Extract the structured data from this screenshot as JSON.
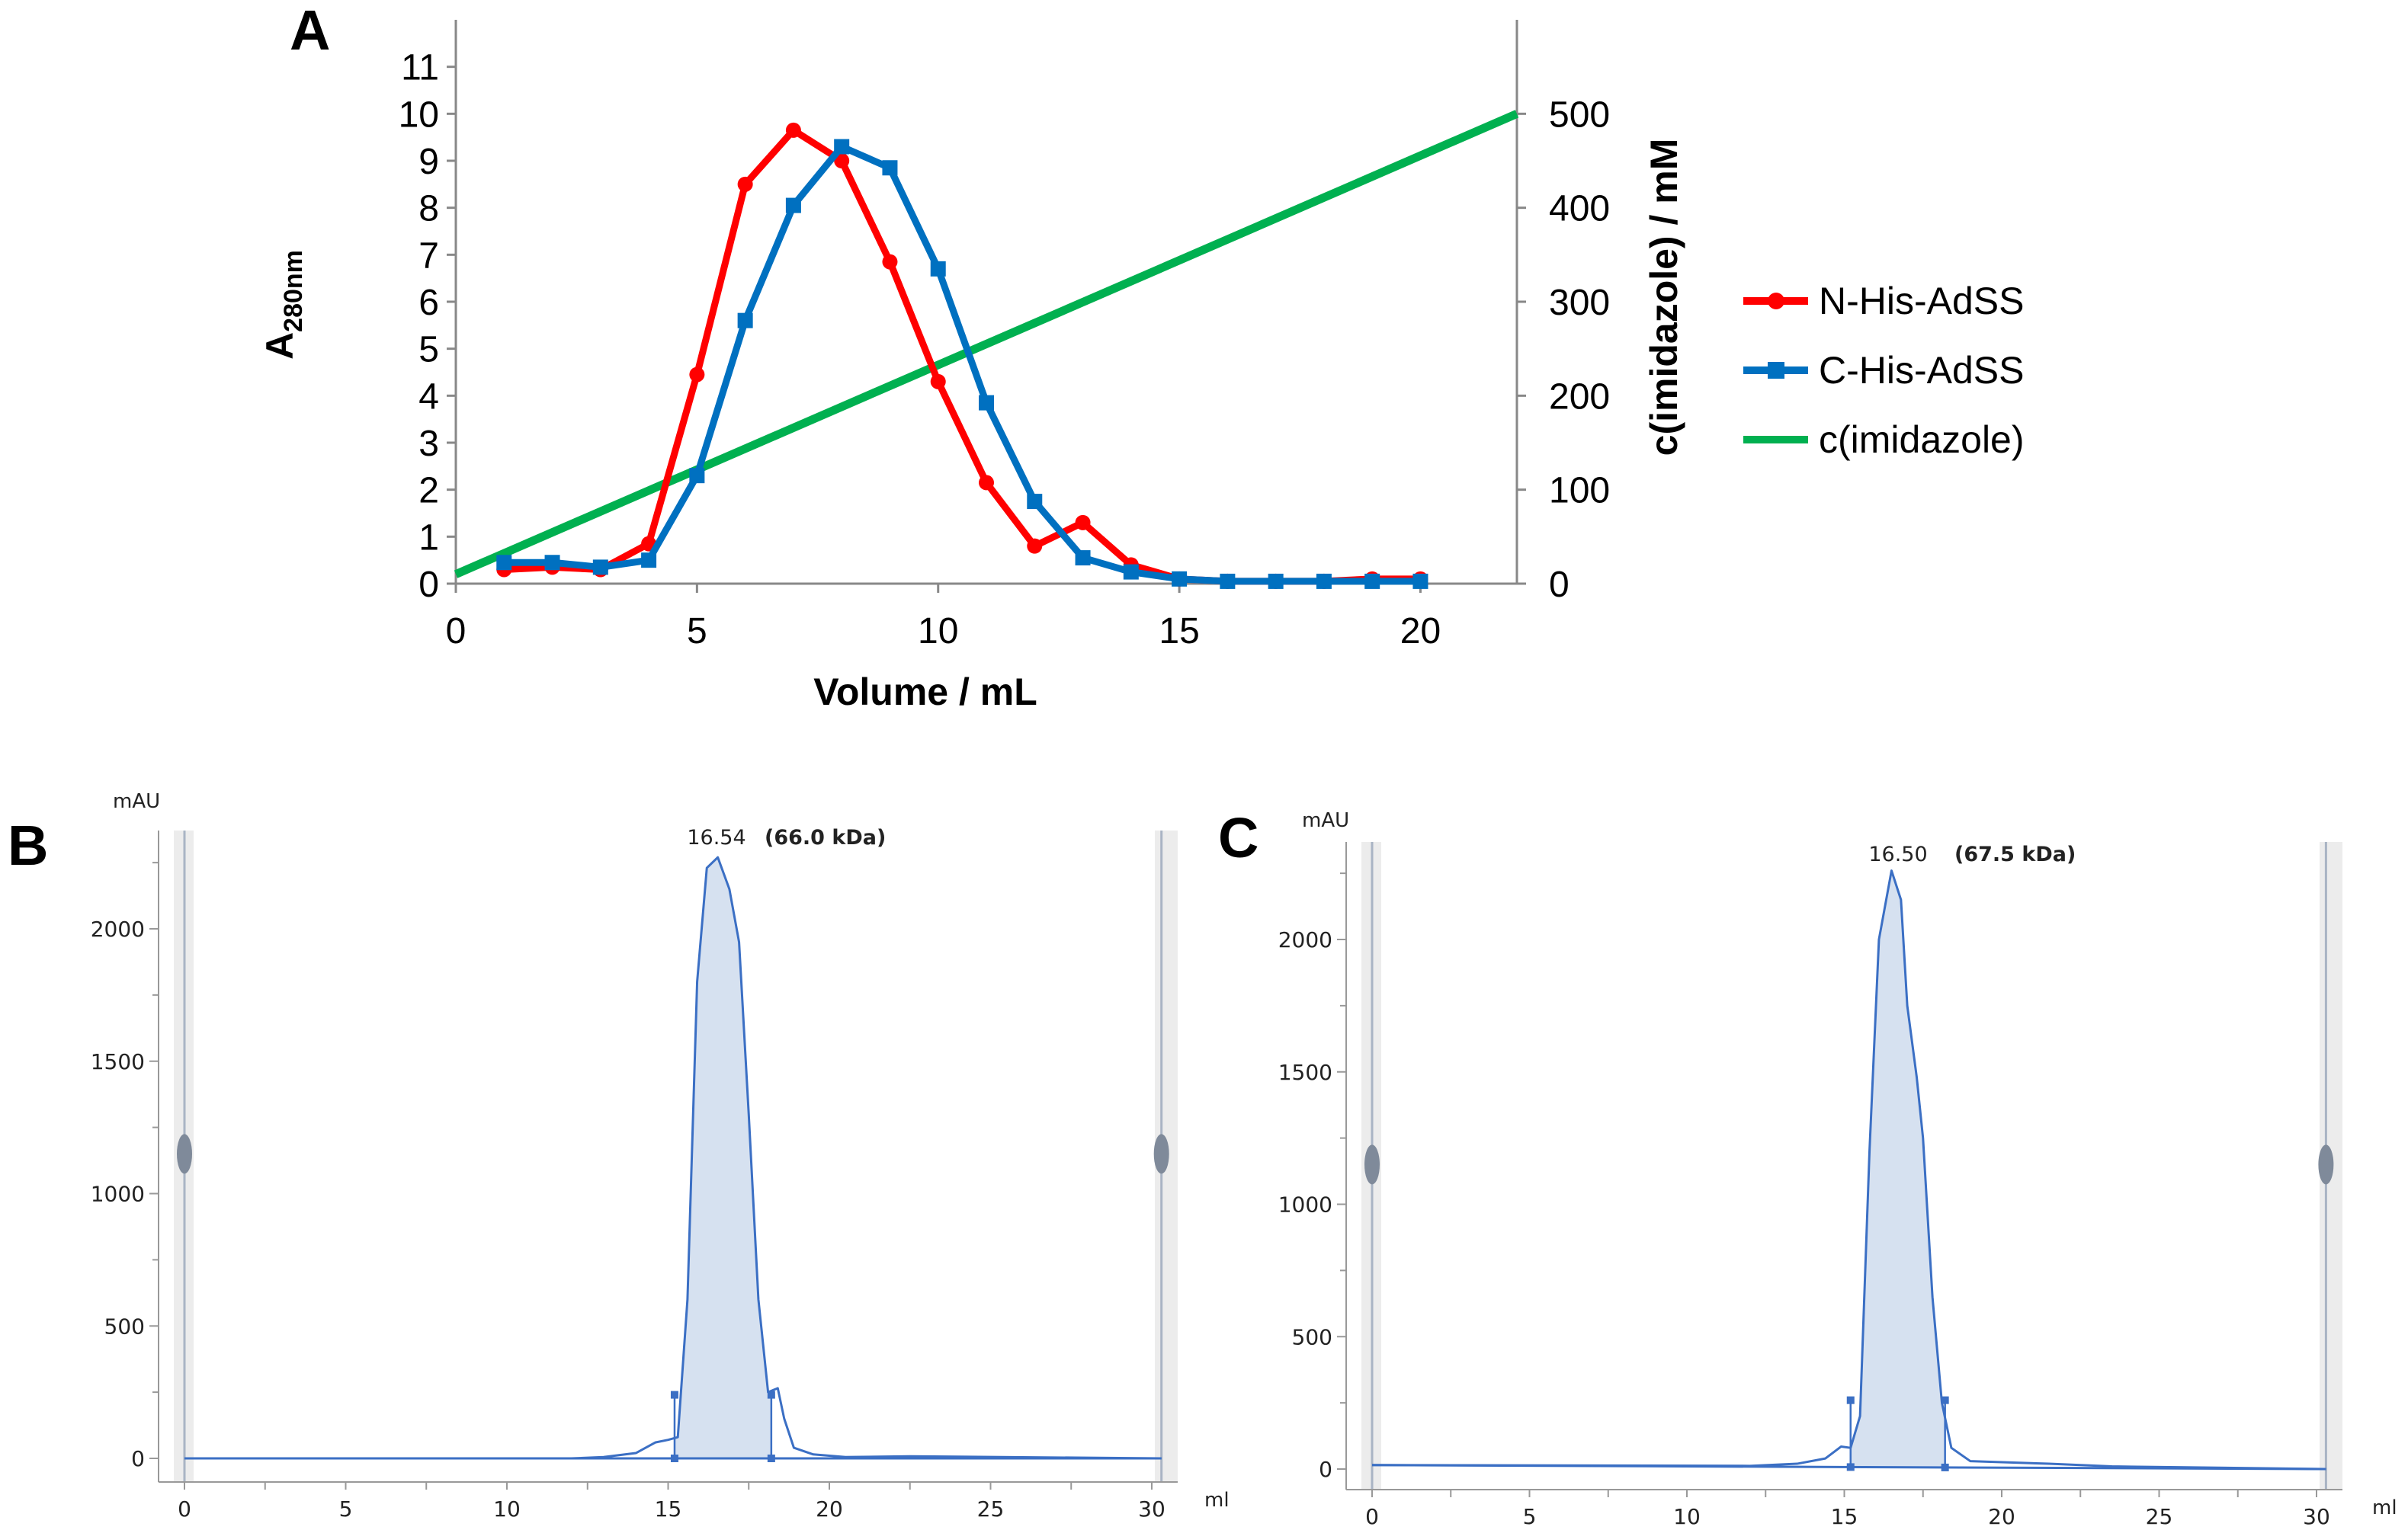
{
  "panels": {
    "a": "A",
    "b": "B",
    "c": "C"
  },
  "chart_data": [
    {
      "type": "line",
      "panel": "A",
      "xlabel": "Volume / mL",
      "ylabel": "A",
      "ylabel_sub": "280nm",
      "y2label": "c(imidazole) / mM",
      "xlim": [
        0,
        22
      ],
      "ylim": [
        0,
        12
      ],
      "y2lim": [
        0,
        600
      ],
      "xticks": [
        0,
        5,
        10,
        15,
        20
      ],
      "yticks": [
        0,
        1,
        2,
        3,
        4,
        5,
        6,
        7,
        8,
        9,
        10,
        11
      ],
      "y2ticks": [
        0,
        100,
        200,
        300,
        400,
        500
      ],
      "legend_position": "right",
      "series": [
        {
          "name": "N-His-AdSS",
          "color": "#ff0000",
          "marker": "circle",
          "axis": "left",
          "x": [
            1,
            2,
            3,
            4,
            5,
            6,
            7,
            8,
            9,
            10,
            11,
            12,
            13,
            14,
            15,
            16,
            17,
            18,
            19,
            20
          ],
          "y": [
            0.3,
            0.35,
            0.3,
            0.85,
            4.45,
            8.5,
            9.65,
            9.0,
            6.85,
            4.3,
            2.15,
            0.8,
            1.3,
            0.4,
            0.1,
            0.05,
            0.05,
            0.05,
            0.1,
            0.1
          ]
        },
        {
          "name": "C-His-AdSS",
          "color": "#0070c0",
          "marker": "square",
          "axis": "left",
          "x": [
            1,
            2,
            3,
            4,
            5,
            6,
            7,
            8,
            9,
            10,
            11,
            12,
            13,
            14,
            15,
            16,
            17,
            18,
            19,
            20
          ],
          "y": [
            0.45,
            0.45,
            0.35,
            0.5,
            2.3,
            5.6,
            8.05,
            9.3,
            8.85,
            6.7,
            3.85,
            1.75,
            0.55,
            0.25,
            0.1,
            0.05,
            0.05,
            0.05,
            0.05,
            0.05
          ]
        },
        {
          "name": "c(imidazole)",
          "color": "#00b050",
          "marker": "none",
          "axis": "right",
          "x": [
            0,
            22
          ],
          "y": [
            10,
            500
          ]
        }
      ]
    },
    {
      "type": "line",
      "panel": "B",
      "ylabel": "mAU",
      "xlabel": "ml",
      "xlim": [
        0,
        30.3
      ],
      "ylim": [
        -80,
        2350
      ],
      "xticks": [
        0,
        5,
        10,
        15,
        20,
        25,
        30
      ],
      "yticks": [
        0,
        500,
        1000,
        1500,
        2000
      ],
      "color": "#3b6fc4",
      "fill_color": "#d6e1f0",
      "peak_label": "16.54",
      "peak_annotation": "(66.0 kDa)",
      "peak_x": 16.54,
      "fraction_bounds": [
        15.2,
        18.2
      ],
      "fraction_marker_height": 240,
      "x": [
        0,
        12,
        13,
        14,
        14.6,
        15,
        15.3,
        15.6,
        15.9,
        16.2,
        16.54,
        16.9,
        17.2,
        17.5,
        17.8,
        18.1,
        18.4,
        18.6,
        18.9,
        19.5,
        20.5,
        22.5,
        30.3
      ],
      "y": [
        0,
        0,
        5,
        20,
        60,
        70,
        80,
        600,
        1800,
        2230,
        2270,
        2150,
        1950,
        1300,
        600,
        250,
        265,
        150,
        40,
        15,
        5,
        8,
        0
      ]
    },
    {
      "type": "line",
      "panel": "C",
      "ylabel": "mAU",
      "xlabel": "ml",
      "xlim": [
        0,
        30.3
      ],
      "ylim": [
        -80,
        2330
      ],
      "xticks": [
        0,
        5,
        10,
        15,
        20,
        25,
        30
      ],
      "yticks": [
        0,
        500,
        1000,
        1500,
        2000
      ],
      "color": "#3b6fc4",
      "fill_color": "#d6e1f0",
      "peak_label": "16.50",
      "peak_annotation": "(67.5 kDa)",
      "peak_x": 16.5,
      "fraction_bounds": [
        15.2,
        18.2
      ],
      "fraction_marker_height": 260,
      "x": [
        0,
        12,
        13.5,
        14.4,
        14.9,
        15.2,
        15.5,
        15.8,
        16.1,
        16.5,
        16.8,
        17.0,
        17.3,
        17.5,
        17.8,
        18.1,
        18.4,
        19,
        21.5,
        23.5,
        30.3
      ],
      "y": [
        15,
        12,
        20,
        40,
        85,
        80,
        200,
        1200,
        2000,
        2260,
        2150,
        1750,
        1480,
        1250,
        650,
        250,
        80,
        30,
        20,
        10,
        0
      ]
    }
  ]
}
